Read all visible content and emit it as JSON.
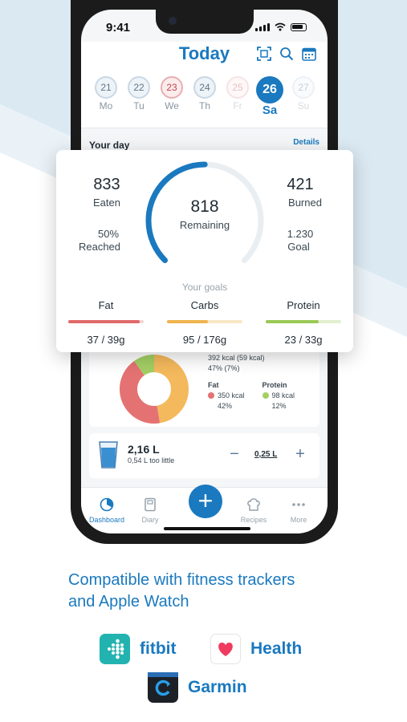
{
  "status": {
    "time": "9:41"
  },
  "header": {
    "title": "Today",
    "icons": [
      "scan-icon",
      "search-icon",
      "calendar-icon"
    ]
  },
  "week": [
    {
      "num": "21",
      "label": "Mo",
      "state": "past"
    },
    {
      "num": "22",
      "label": "Tu",
      "state": "past"
    },
    {
      "num": "23",
      "label": "We",
      "state": "over"
    },
    {
      "num": "24",
      "label": "Th",
      "state": "past"
    },
    {
      "num": "25",
      "label": "Fr",
      "state": "over-faded"
    },
    {
      "num": "26",
      "label": "Sa",
      "state": "active"
    },
    {
      "num": "27",
      "label": "Su",
      "state": "future"
    }
  ],
  "your_day": {
    "label": "Your day",
    "details": "Details"
  },
  "summary": {
    "eaten_value": "833",
    "eaten_label": "Eaten",
    "burned_value": "421",
    "burned_label": "Burned",
    "remaining_value": "818",
    "remaining_label": "Remaining",
    "reached_pct": "50%",
    "reached_label": "Reached",
    "goal_value": "1.230",
    "goal_label": "Goal",
    "ring_progress": 0.5,
    "goals_label": "Your goals",
    "macros": [
      {
        "name": "Fat",
        "value": "37 / 39g",
        "fraction": 0.95,
        "color": "#e06a6a"
      },
      {
        "name": "Carbs",
        "value": "95 / 176g",
        "fraction": 0.54,
        "color": "#f0b54e"
      },
      {
        "name": "Protein",
        "value": "23 / 33g",
        "fraction": 0.7,
        "color": "#9ac957"
      }
    ]
  },
  "macro_breakdown": {
    "carbs_kcal": "392 kcal (59 kcal)",
    "carbs_pct": "47% (7%)",
    "fat_label": "Fat",
    "fat_kcal": "350 kcal",
    "fat_pct": "42%",
    "protein_label": "Protein",
    "protein_kcal": "98 kcal",
    "protein_pct": "12%",
    "colors": {
      "fat": "#e06a6a",
      "carbs": "#f0b54e",
      "protein": "#9ac957"
    }
  },
  "water": {
    "amount": "2,16 L",
    "note": "0,54 L too little",
    "step": "0,25 L",
    "minus": "−",
    "plus": "+"
  },
  "tabs": [
    {
      "label": "Dashboard",
      "icon": "dashboard-icon",
      "active": true
    },
    {
      "label": "Diary",
      "icon": "diary-icon",
      "active": false
    },
    {
      "label": "Recipes",
      "icon": "recipes-icon",
      "active": false
    },
    {
      "label": "More",
      "icon": "more-icon",
      "active": false
    }
  ],
  "fab": "+",
  "promo": {
    "line1": "Compatible with fitness trackers",
    "line2": "and Apple Watch"
  },
  "brands": {
    "fitbit": "fitbit",
    "health": "Health",
    "garmin": "Garmin"
  },
  "colors": {
    "accent": "#1a79bf",
    "bg_shape": "#dbe9f3"
  }
}
